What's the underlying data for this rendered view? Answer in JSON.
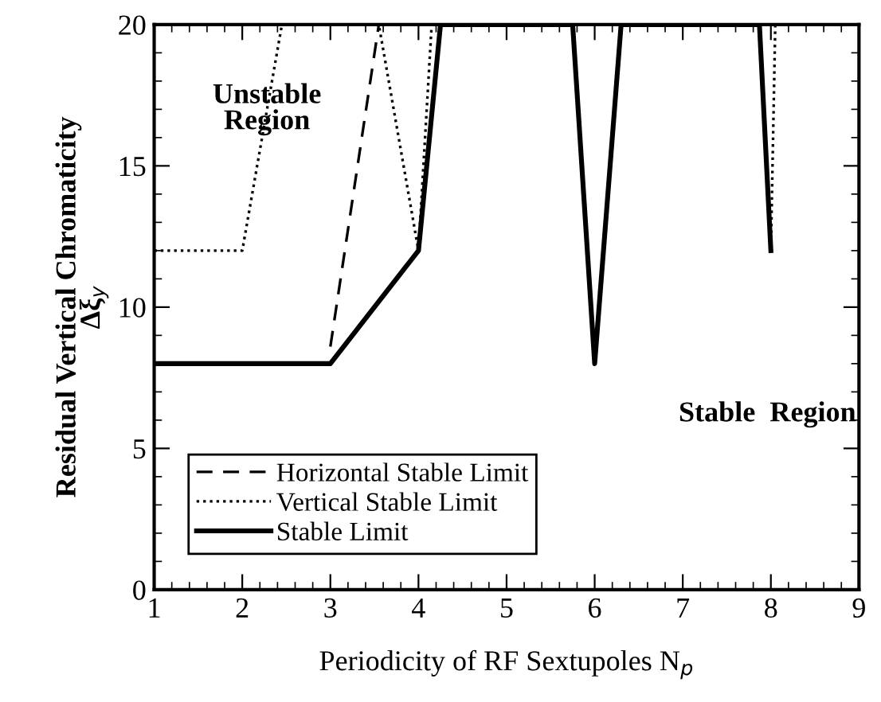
{
  "chart_data": {
    "type": "line",
    "xlabel": "Periodicity of RF Sextupoles N$_{p}$",
    "ylabel": "Residual Vertical Chromaticity\nΔξ$_{y}$",
    "xlim": [
      1,
      9
    ],
    "ylim": [
      0,
      20
    ],
    "xticks": [
      1,
      2,
      3,
      4,
      5,
      6,
      7,
      8,
      9
    ],
    "yticks": [
      0,
      5,
      10,
      15,
      20
    ],
    "grid": false,
    "legend": "bottom left",
    "marker": "none",
    "annotations": [
      "Unstable Region",
      "Stable Region"
    ],
    "series": [
      {
        "name": "Horizontal Stable Limit",
        "color": "#000000",
        "line_style": "dashed",
        "x": [
          3,
          3.55,
          9
        ],
        "values": [
          8.6,
          20,
          20
        ]
      },
      {
        "name": "Vertical Stable Limit",
        "color": "#000000",
        "line_style": "dotted",
        "x": [
          1,
          2,
          2.45,
          3.55,
          4,
          4.15,
          8.05,
          8
        ],
        "values": [
          12,
          12,
          20,
          20,
          12,
          20,
          20,
          12
        ]
      },
      {
        "name": "Stable Limit",
        "color": "#000000",
        "line_style": "solid",
        "x": [
          1,
          3,
          4,
          4.25,
          5.75,
          6,
          6.3,
          7.87,
          8
        ],
        "values": [
          8,
          8,
          12,
          20,
          20,
          8,
          20,
          20,
          12
        ]
      }
    ]
  }
}
